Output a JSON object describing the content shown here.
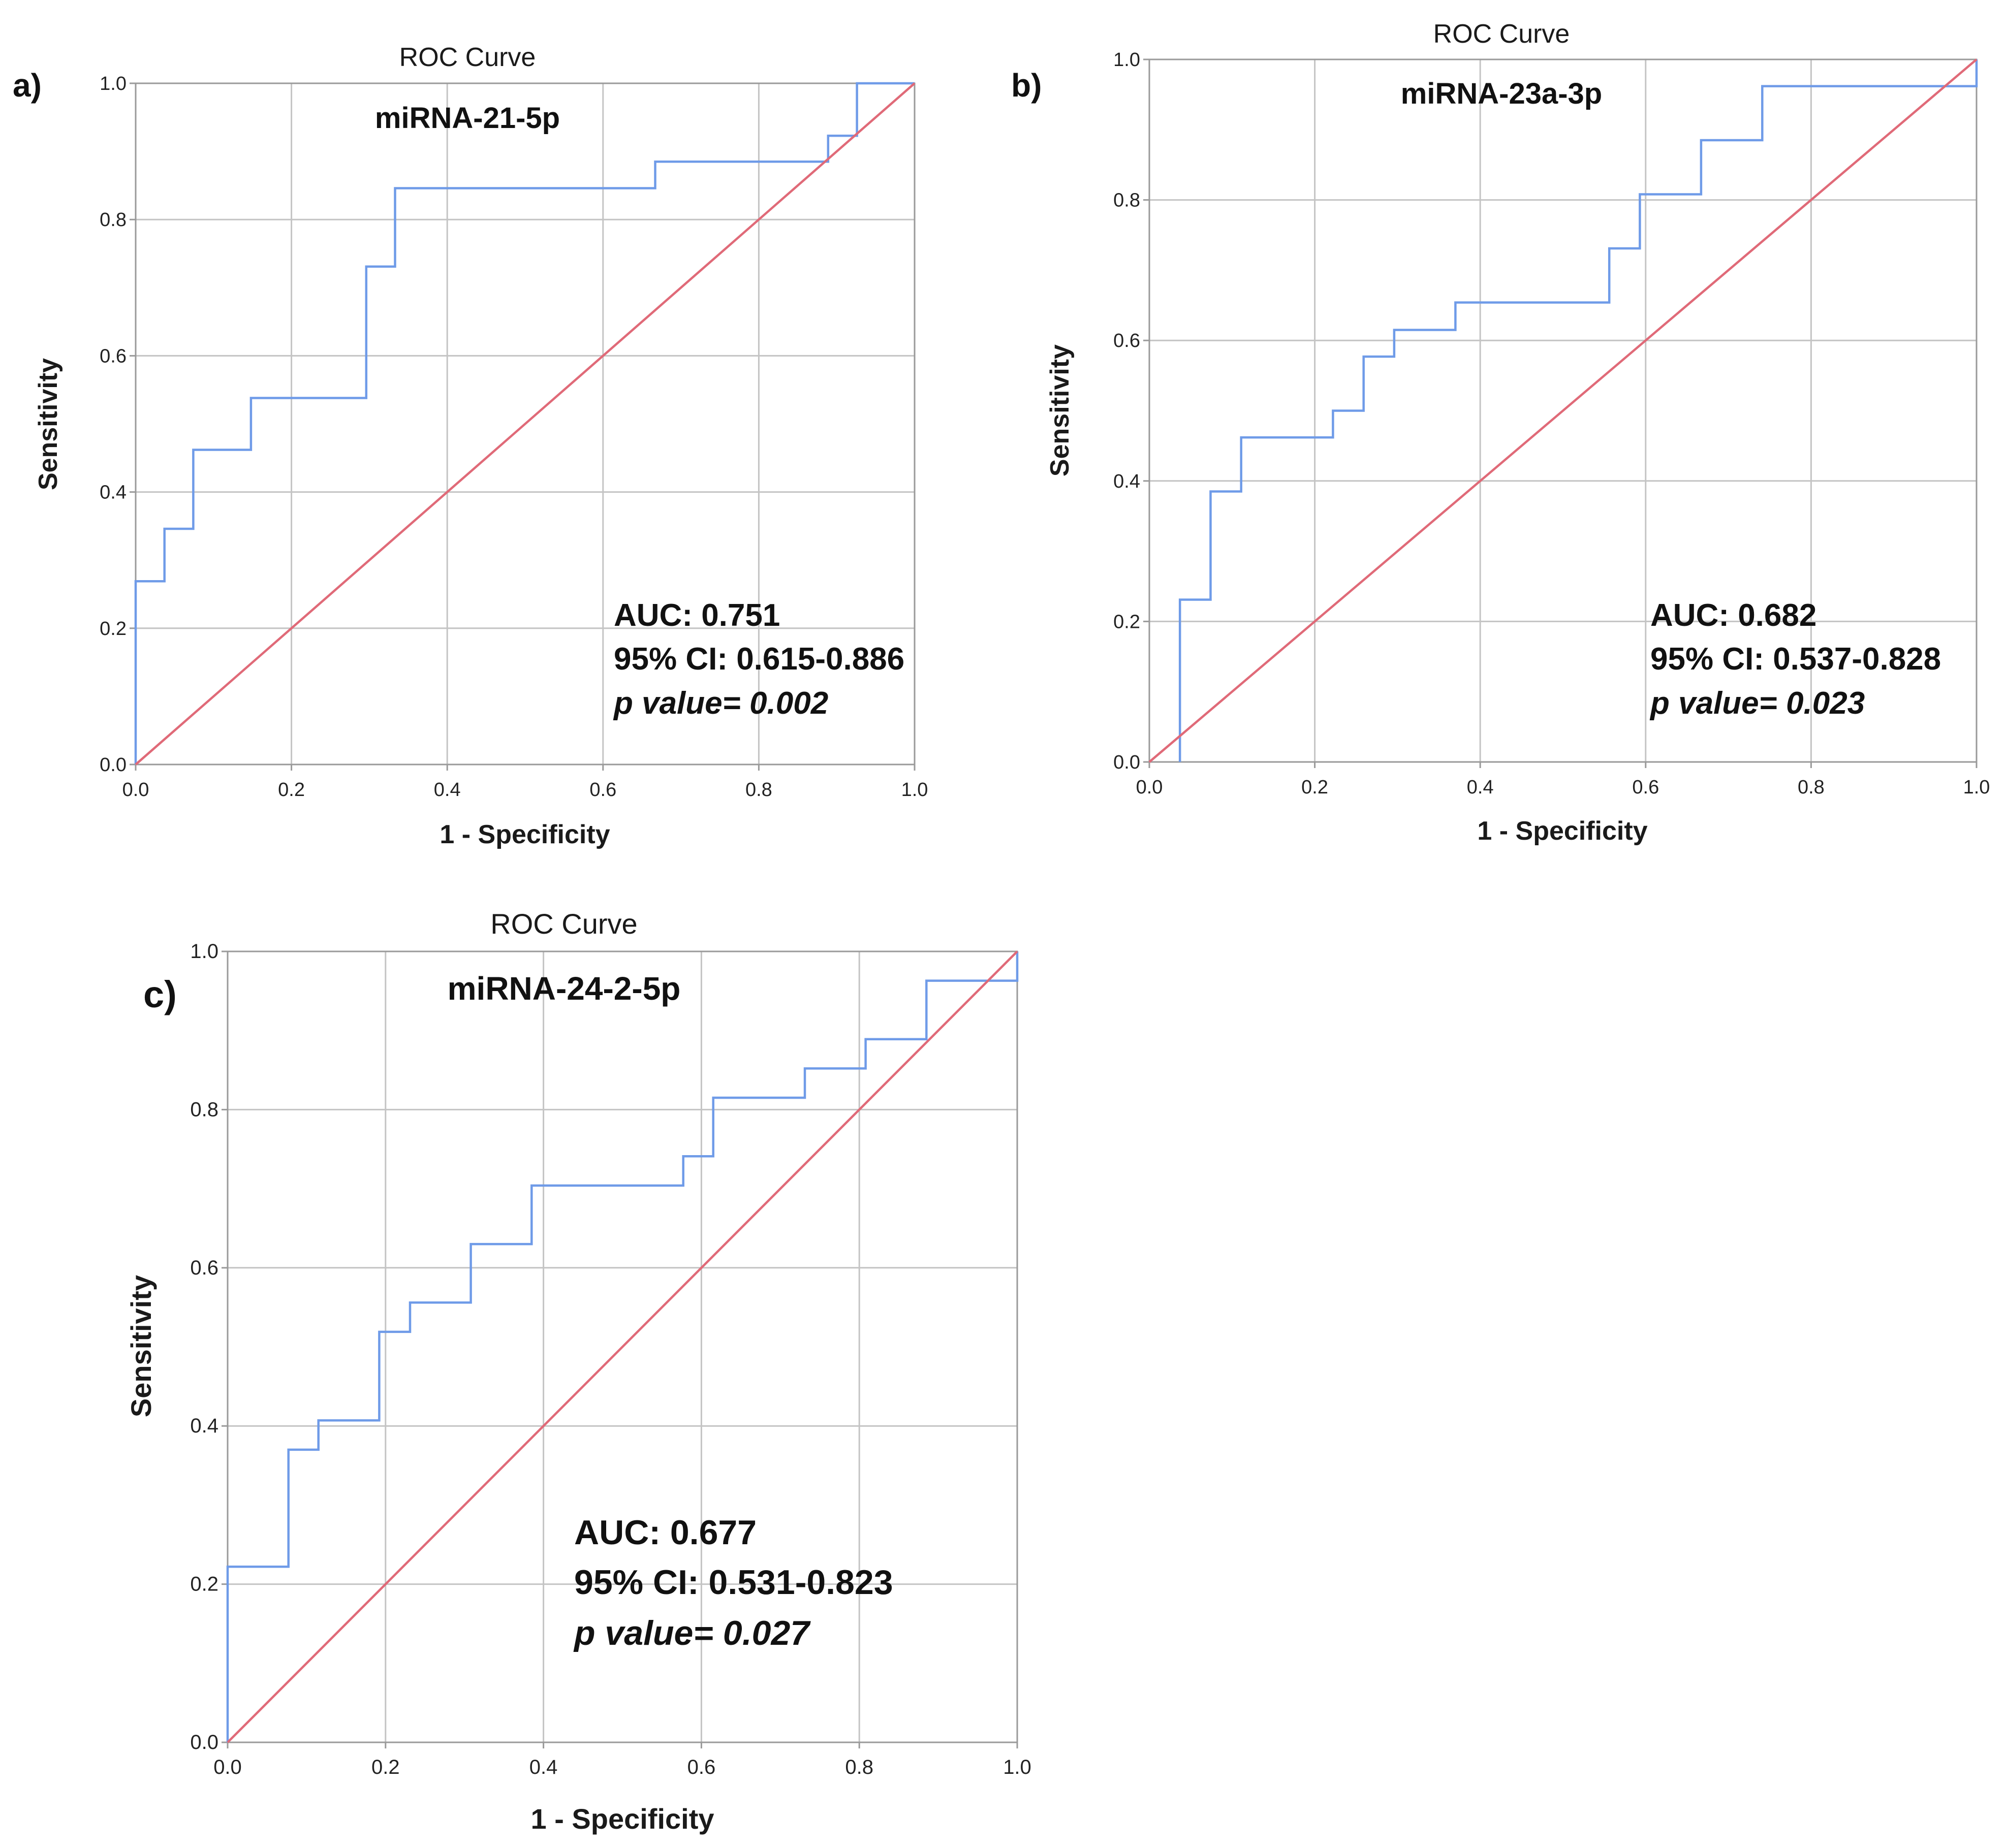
{
  "colors": {
    "roc_curve": "#6f9be8",
    "reference_line": "#e06a78",
    "grid": "#c4c4c4",
    "frame": "#9a9a9a"
  },
  "chart_data": [
    {
      "panel": "a)",
      "type": "line",
      "title": "ROC Curve",
      "subtitle": "miRNA-21-5p",
      "xlabel": "1 - Specificity",
      "ylabel": "Sensitivity",
      "xlim": [
        0,
        1
      ],
      "ylim": [
        0,
        1
      ],
      "x_ticks": [
        "0.0",
        "0.2",
        "0.4",
        "0.6",
        "0.8",
        "1.0"
      ],
      "y_ticks": [
        "0.0",
        "0.2",
        "0.4",
        "0.6",
        "0.8",
        "1.0"
      ],
      "grid": true,
      "stats": {
        "auc": "AUC: 0.751",
        "ci": "95% CI: 0.615-0.886",
        "p": "p value= 0.002"
      },
      "series": [
        {
          "type": "step",
          "x": [
            0,
            0,
            0.037,
            0.037,
            0.074,
            0.074,
            0.148,
            0.148,
            0.296,
            0.296,
            0.333,
            0.333,
            0.667,
            0.667,
            0.889,
            0.889,
            0.926,
            0.926,
            1.0
          ],
          "y": [
            0,
            0.269,
            0.269,
            0.346,
            0.346,
            0.462,
            0.462,
            0.538,
            0.538,
            0.731,
            0.731,
            0.846,
            0.846,
            0.885,
            0.885,
            0.923,
            0.923,
            1.0,
            1.0
          ]
        },
        {
          "type": "reference",
          "x": [
            0,
            1
          ],
          "y": [
            0,
            1
          ]
        }
      ]
    },
    {
      "panel": "b)",
      "type": "line",
      "title": "ROC Curve",
      "subtitle": "miRNA-23a-3p",
      "xlabel": "1 - Specificity",
      "ylabel": "Sensitivity",
      "xlim": [
        0,
        1
      ],
      "ylim": [
        0,
        1
      ],
      "x_ticks": [
        "0.0",
        "0.2",
        "0.4",
        "0.6",
        "0.8",
        "1.0"
      ],
      "y_ticks": [
        "0.0",
        "0.2",
        "0.4",
        "0.6",
        "0.8",
        "1.0"
      ],
      "grid": true,
      "stats": {
        "auc": "AUC: 0.682",
        "ci": "95% CI: 0.537-0.828",
        "p": "p value= 0.023"
      },
      "series": [
        {
          "type": "step",
          "x": [
            0.037,
            0.037,
            0.074,
            0.074,
            0.111,
            0.111,
            0.222,
            0.222,
            0.259,
            0.259,
            0.296,
            0.296,
            0.37,
            0.37,
            0.556,
            0.556,
            0.593,
            0.593,
            0.667,
            0.667,
            0.741,
            0.741,
            1.0,
            1.0
          ],
          "y": [
            0,
            0.231,
            0.231,
            0.385,
            0.385,
            0.462,
            0.462,
            0.5,
            0.5,
            0.577,
            0.577,
            0.615,
            0.615,
            0.654,
            0.654,
            0.731,
            0.731,
            0.808,
            0.808,
            0.885,
            0.885,
            0.962,
            0.962,
            1.0
          ]
        },
        {
          "type": "reference",
          "x": [
            0,
            1
          ],
          "y": [
            0,
            1
          ]
        }
      ]
    },
    {
      "panel": "c)",
      "type": "line",
      "title": "ROC Curve",
      "subtitle": "miRNA-24-2-5p",
      "xlabel": "1 - Specificity",
      "ylabel": "Sensitivity",
      "xlim": [
        0,
        1
      ],
      "ylim": [
        0,
        1
      ],
      "x_ticks": [
        "0.0",
        "0.2",
        "0.4",
        "0.6",
        "0.8",
        "1.0"
      ],
      "y_ticks": [
        "0.0",
        "0.2",
        "0.4",
        "0.6",
        "0.8",
        "1.0"
      ],
      "grid": true,
      "stats": {
        "auc": "AUC: 0.677",
        "ci": "95% CI: 0.531-0.823",
        "p": "p value= 0.027"
      },
      "series": [
        {
          "type": "step",
          "x": [
            0,
            0,
            0.077,
            0.077,
            0.115,
            0.115,
            0.192,
            0.192,
            0.231,
            0.231,
            0.308,
            0.308,
            0.385,
            0.385,
            0.577,
            0.577,
            0.615,
            0.615,
            0.731,
            0.731,
            0.808,
            0.808,
            0.885,
            0.885,
            1.0,
            1.0
          ],
          "y": [
            0,
            0.222,
            0.222,
            0.37,
            0.37,
            0.407,
            0.407,
            0.519,
            0.519,
            0.556,
            0.556,
            0.63,
            0.63,
            0.704,
            0.704,
            0.741,
            0.741,
            0.815,
            0.815,
            0.852,
            0.852,
            0.889,
            0.889,
            0.963,
            0.963,
            1.0
          ]
        },
        {
          "type": "reference",
          "x": [
            0,
            1
          ],
          "y": [
            0,
            1
          ]
        }
      ]
    }
  ]
}
